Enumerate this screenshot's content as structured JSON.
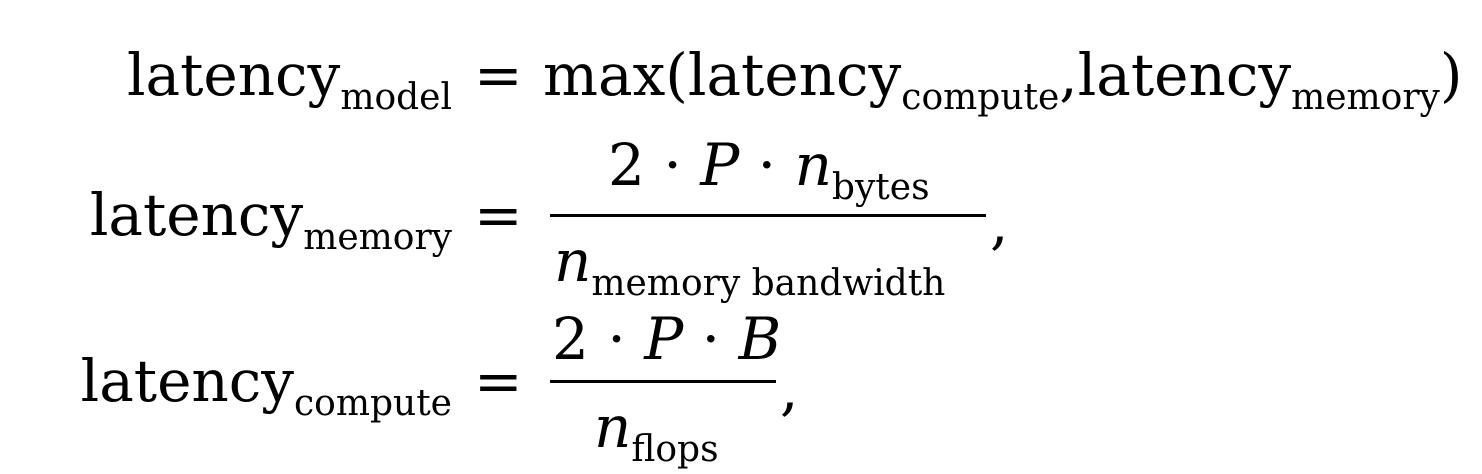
{
  "equations": [
    {
      "lhs_main": "latency",
      "lhs_sub": "model",
      "equals": "=",
      "rhs_func": "max(",
      "rhs_term1": "latency",
      "rhs_term1_sub": "compute",
      "rhs_sep": ",",
      "rhs_term2": "latency",
      "rhs_term2_sub": "memory",
      "rhs_close": ")"
    },
    {
      "lhs_main": "latency",
      "lhs_sub": "memory",
      "equals": "=",
      "num_coeff": "2 · ",
      "num_var1": "P",
      "num_dot": " · ",
      "num_var2": "n",
      "num_var2_sub": "bytes",
      "den_var": "n",
      "den_sub": "memory bandwidth",
      "trailing": ","
    },
    {
      "lhs_main": "latency",
      "lhs_sub": "compute",
      "equals": "=",
      "num_coeff": "2 · ",
      "num_var1": "P",
      "num_dot": " · ",
      "num_var2": "B",
      "den_var": "n",
      "den_sub": "flops",
      "trailing": ","
    }
  ]
}
